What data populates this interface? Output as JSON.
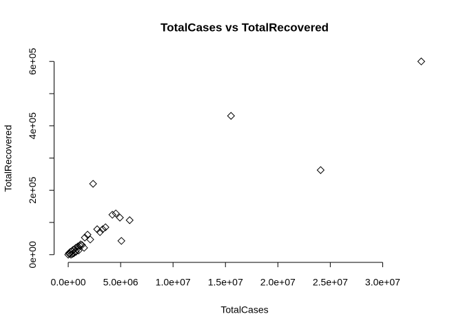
{
  "chart_data": {
    "type": "scatter",
    "title": "TotalCases  vs TotalRecovered",
    "x_label": "TotalCases",
    "y_label": "TotalRecovered",
    "x": [
      33680000,
      15530000,
      24080000,
      2370000,
      4210000,
      4540000,
      4930000,
      5860000,
      5070000,
      3550000,
      3290000,
      2760000,
      3030000,
      1840000,
      1580000,
      2100000,
      0,
      66000,
      197000,
      329000,
      461000,
      592000,
      724000,
      921000,
      1118000,
      1316000,
      1513000,
      987000,
      724000,
      395000,
      263000,
      526000,
      1184000,
      855000,
      132000
    ],
    "values": [
      600000,
      431000,
      262500,
      220000,
      124000,
      128000,
      115000,
      107000,
      42700,
      85000,
      79000,
      79000,
      70000,
      62000,
      53000,
      47000,
      0,
      4300,
      8500,
      10700,
      14900,
      17100,
      21300,
      25600,
      27700,
      29900,
      21300,
      12800,
      8500,
      2100,
      0,
      4300,
      32000,
      17100,
      2100
    ],
    "color": "#000000",
    "xlim": [
      -1350000,
      35000000
    ],
    "ylim": [
      -24000,
      624000
    ],
    "xticks": [
      {
        "value": 0,
        "label": "0.0e+00"
      },
      {
        "value": 5000000,
        "label": "5.0e+06"
      },
      {
        "value": 10000000,
        "label": "1.0e+07"
      },
      {
        "value": 15000000,
        "label": "1.5e+07"
      },
      {
        "value": 20000000,
        "label": "2.0e+07"
      },
      {
        "value": 25000000,
        "label": "2.5e+07"
      },
      {
        "value": 30000000,
        "label": "3.0e+07"
      }
    ],
    "yticks": [
      {
        "value": 0,
        "label": "0e+00"
      },
      {
        "value": 200000,
        "label": "2e+05"
      },
      {
        "value": 400000,
        "label": "4e+05"
      },
      {
        "value": 600000,
        "label": "6e+05"
      }
    ],
    "yminorticks": [
      100000,
      300000,
      500000
    ]
  }
}
